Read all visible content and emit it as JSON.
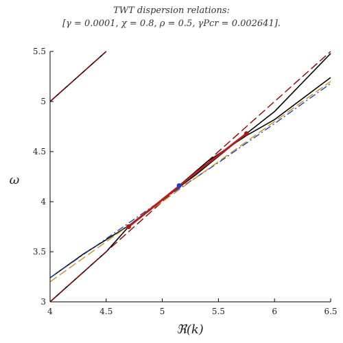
{
  "chart_data": {
    "type": "line",
    "title": "TWT dispersion relations:",
    "subtitle": "[γ = 0.0001, χ = 0.8, ρ = 0.5, γPcr = 0.002641].",
    "xlabel": "ℜ(k)",
    "ylabel": "ω",
    "xlim": [
      4,
      6.5
    ],
    "ylim": [
      3,
      5.5
    ],
    "x_ticks": [
      "4",
      "4.5",
      "5",
      "5.5",
      "6",
      "6.5"
    ],
    "y_ticks": [
      "3",
      "3.5",
      "4",
      "4.5",
      "5",
      "5.5"
    ],
    "grid": false,
    "legend": "none",
    "series": [
      {
        "color": "#000000",
        "style": "solid",
        "width": 1.6,
        "x": [
          4.0,
          4.5,
          4.7,
          5.0,
          5.3,
          5.75,
          6.0,
          6.5
        ],
        "y": [
          3.0,
          3.5,
          3.75,
          4.02,
          4.27,
          4.68,
          4.9,
          5.48
        ]
      },
      {
        "color": "#8b0000",
        "style": "dashed",
        "width": 1.4,
        "x": [
          4.0,
          4.5,
          4.7,
          5.0,
          5.3,
          5.75,
          6.0,
          6.5
        ],
        "y": [
          3.0,
          3.5,
          3.7,
          4.0,
          4.3,
          4.75,
          5.0,
          5.5
        ]
      },
      {
        "color": "#000000",
        "style": "solid",
        "width": 1.6,
        "x": [
          4.0,
          4.3,
          4.7,
          5.0,
          5.15,
          5.4,
          5.75,
          6.0,
          6.5
        ],
        "y": [
          3.24,
          3.48,
          3.76,
          4.02,
          4.16,
          4.4,
          4.66,
          4.82,
          5.24
        ]
      },
      {
        "color": "#1f3fb4",
        "style": "dashdot",
        "width": 1.4,
        "x": [
          4.0,
          4.5,
          5.0,
          5.5,
          6.0,
          6.5
        ],
        "y": [
          3.24,
          3.63,
          4.02,
          4.39,
          4.78,
          5.18
        ]
      },
      {
        "color": "#d08c1c",
        "style": "dashed",
        "width": 1.4,
        "x": [
          4.0,
          4.5,
          5.0,
          5.5,
          6.0,
          6.5
        ],
        "y": [
          3.2,
          3.6,
          4.0,
          4.4,
          4.8,
          5.2
        ]
      },
      {
        "color": "#000000",
        "style": "solid",
        "width": 1.6,
        "x": [
          4.0,
          4.5
        ],
        "y": [
          5.0,
          5.5
        ]
      },
      {
        "color": "#8b0000",
        "style": "dashed",
        "width": 1.4,
        "x": [
          4.0,
          4.5
        ],
        "y": [
          5.0,
          5.5
        ]
      },
      {
        "color": "#b41e1e",
        "style": "solid",
        "width": 3,
        "x": [
          4.7,
          5.0,
          5.3,
          5.75
        ],
        "y": [
          3.75,
          4.02,
          4.29,
          4.68
        ]
      }
    ],
    "markers": [
      {
        "color": "#a01818",
        "x": 4.7,
        "y": 3.75
      },
      {
        "color": "#a01818",
        "x": 5.75,
        "y": 4.68
      },
      {
        "color": "#1f3fb4",
        "x": 5.15,
        "y": 4.16
      }
    ]
  }
}
